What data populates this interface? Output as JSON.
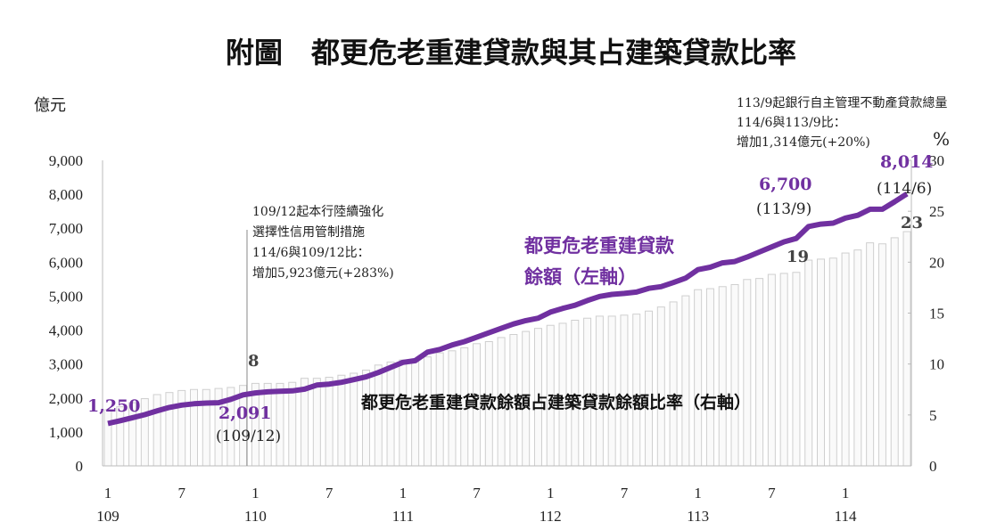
{
  "chart_data": {
    "type": "bar+line",
    "title": "附圖　都更危老重建貸款與其占建築貸款比率",
    "ylabel_left": "億元",
    "ylabel_right": "%",
    "ylim_left": [
      0,
      9000
    ],
    "ylim_right": [
      0,
      30
    ],
    "yticks_left": [
      "0",
      "1,000",
      "2,000",
      "3,000",
      "4,000",
      "5,000",
      "6,000",
      "7,000",
      "8,000",
      "9,000"
    ],
    "yticks_right": [
      "0",
      "5",
      "10",
      "15",
      "20",
      "25",
      "30"
    ],
    "x_month_labels": [
      {
        "i": 0,
        "m": "1",
        "y": "109"
      },
      {
        "i": 6,
        "m": "7"
      },
      {
        "i": 12,
        "m": "1",
        "y": "110"
      },
      {
        "i": 18,
        "m": "7"
      },
      {
        "i": 24,
        "m": "1",
        "y": "111"
      },
      {
        "i": 30,
        "m": "7"
      },
      {
        "i": 36,
        "m": "1",
        "y": "112"
      },
      {
        "i": 42,
        "m": "7"
      },
      {
        "i": 48,
        "m": "1",
        "y": "113"
      },
      {
        "i": 54,
        "m": "7"
      },
      {
        "i": 60,
        "m": "1",
        "y": "114"
      }
    ],
    "series": [
      {
        "name": "都更危老重建貸款餘額（左軸）",
        "label_lines": [
          "都更危老重建貸款",
          "餘額（左軸）"
        ],
        "type": "line",
        "color": "#7030a0",
        "values": [
          1250,
          1330,
          1420,
          1510,
          1620,
          1720,
          1790,
          1830,
          1850,
          1860,
          1960,
          2091,
          2150,
          2180,
          2200,
          2210,
          2260,
          2380,
          2410,
          2460,
          2540,
          2620,
          2750,
          2900,
          3050,
          3100,
          3350,
          3430,
          3560,
          3660,
          3790,
          3920,
          4050,
          4180,
          4280,
          4350,
          4530,
          4640,
          4730,
          4870,
          4990,
          5050,
          5080,
          5120,
          5230,
          5280,
          5400,
          5530,
          5780,
          5850,
          5980,
          6020,
          6150,
          6300,
          6450,
          6600,
          6700,
          7050,
          7120,
          7150,
          7300,
          7380,
          7560,
          7560,
          7780,
          8014
        ]
      },
      {
        "name": "都更危老重建貸款餘額占建築貸款餘額比率（右軸）",
        "type": "bar",
        "color": "#e6e6e6",
        "values": [
          5.5,
          5.8,
          6.2,
          6.6,
          7.0,
          7.2,
          7.4,
          7.5,
          7.5,
          7.6,
          7.7,
          7.9,
          8.1,
          8.1,
          8.1,
          8.2,
          8.6,
          8.6,
          8.7,
          8.9,
          9.1,
          9.4,
          9.9,
          10.2,
          10.4,
          10.5,
          10.7,
          11.1,
          11.3,
          11.6,
          12.0,
          12.2,
          12.6,
          12.9,
          13.2,
          13.5,
          13.8,
          14.0,
          14.3,
          14.5,
          14.7,
          14.7,
          14.8,
          14.9,
          15.2,
          15.6,
          16.1,
          16.7,
          17.3,
          17.4,
          17.6,
          17.8,
          18.3,
          18.4,
          18.8,
          18.9,
          19.0,
          20.2,
          20.3,
          20.4,
          20.9,
          21.2,
          21.9,
          21.8,
          22.4,
          23.0
        ]
      }
    ],
    "data_labels": {
      "line_start": "1,250",
      "line_10912": "2,091",
      "line_10912_date": "(109/12)",
      "line_1139": "6,700",
      "line_1139_date": "(113/9)",
      "line_1146": "8,014",
      "line_1146_date": "(114/6)",
      "bar_1101": "8",
      "bar_1139": "19",
      "bar_1146": "23"
    },
    "annotations": {
      "left": [
        "109/12起本行陸續強化",
        "選擇性信用管制措施",
        "114/6與109/12比：",
        "增加5,923億元(+283%)"
      ],
      "right": [
        "113/9起銀行自主管理不動產貸款總量",
        "114/6與113/9比：",
        "增加1,314億元(+20%)"
      ]
    }
  }
}
